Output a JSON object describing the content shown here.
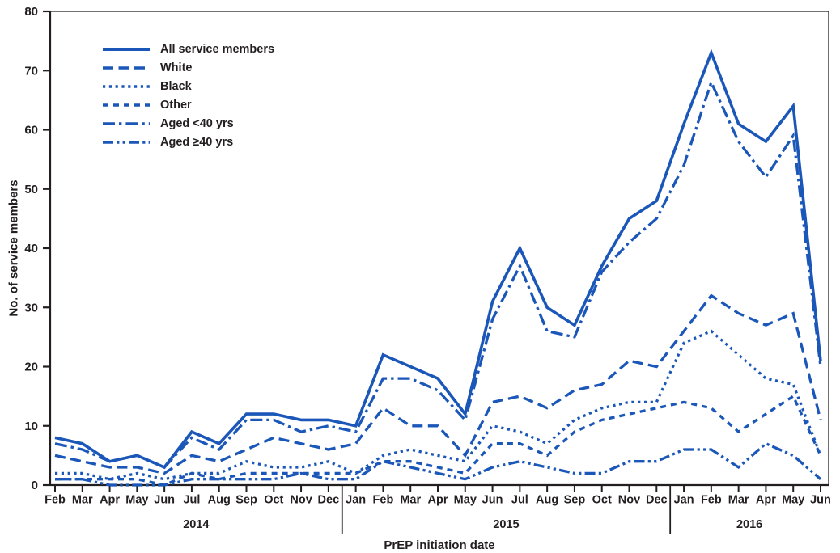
{
  "chart_data": {
    "type": "line",
    "title": "",
    "xlabel": "PrEP initiation date",
    "ylabel": "No. of service members",
    "ylim": [
      0,
      80
    ],
    "y_ticks": [
      0,
      10,
      20,
      30,
      40,
      50,
      60,
      70,
      80
    ],
    "grid": false,
    "legend_position": "top-left-inside",
    "line_color": "#1b57b8",
    "axis_color": "#231f20",
    "x_categories": [
      "Feb",
      "Mar",
      "Apr",
      "May",
      "Jun",
      "Jul",
      "Aug",
      "Sep",
      "Oct",
      "Nov",
      "Dec",
      "Jan",
      "Feb",
      "Mar",
      "Apr",
      "May",
      "Jun",
      "Jul",
      "Aug",
      "Sep",
      "Oct",
      "Nov",
      "Dec",
      "Jan",
      "Feb",
      "Mar",
      "Apr",
      "May",
      "Jun"
    ],
    "year_groups": [
      {
        "label": "2014",
        "count": 11
      },
      {
        "label": "2015",
        "count": 12
      },
      {
        "label": "2016",
        "count": 6
      }
    ],
    "series": [
      {
        "name": "All service members",
        "dash": "solid",
        "values": [
          8,
          7,
          4,
          5,
          3,
          9,
          7,
          12,
          12,
          11,
          11,
          10,
          22,
          20,
          18,
          12,
          31,
          40,
          30,
          27,
          37,
          45,
          48,
          61,
          73,
          61,
          58,
          64,
          21
        ]
      },
      {
        "name": "White",
        "dash": "long-dash",
        "values": [
          5,
          4,
          3,
          3,
          2,
          5,
          4,
          6,
          8,
          7,
          6,
          7,
          13,
          10,
          10,
          5,
          14,
          15,
          13,
          16,
          17,
          21,
          20,
          26,
          32,
          29,
          27,
          29,
          11
        ]
      },
      {
        "name": "Black",
        "dash": "dotted",
        "values": [
          2,
          2,
          1,
          2,
          1,
          2,
          2,
          4,
          3,
          3,
          4,
          2,
          5,
          6,
          5,
          4,
          10,
          9,
          7,
          11,
          13,
          14,
          14,
          24,
          26,
          22,
          18,
          17,
          5
        ]
      },
      {
        "name": "Other",
        "dash": "short-dash",
        "values": [
          1,
          1,
          1,
          1,
          0,
          2,
          1,
          2,
          2,
          2,
          2,
          2,
          4,
          4,
          3,
          2,
          7,
          7,
          5,
          9,
          11,
          12,
          13,
          14,
          13,
          9,
          12,
          15,
          5
        ]
      },
      {
        "name": "Aged <40 yrs",
        "dash": "dash-dot",
        "values": [
          7,
          6,
          4,
          5,
          3,
          8,
          6,
          11,
          11,
          9,
          10,
          9,
          18,
          18,
          16,
          11,
          28,
          37,
          26,
          25,
          36,
          41,
          45,
          54,
          68,
          58,
          52,
          59,
          20
        ]
      },
      {
        "name": "Aged ≥40 yrs",
        "dash": "dash-dot-dot",
        "values": [
          1,
          1,
          0,
          0,
          0,
          1,
          1,
          1,
          1,
          2,
          1,
          1,
          4,
          3,
          2,
          1,
          3,
          4,
          3,
          2,
          2,
          4,
          4,
          6,
          6,
          3,
          7,
          5,
          1
        ]
      }
    ]
  }
}
